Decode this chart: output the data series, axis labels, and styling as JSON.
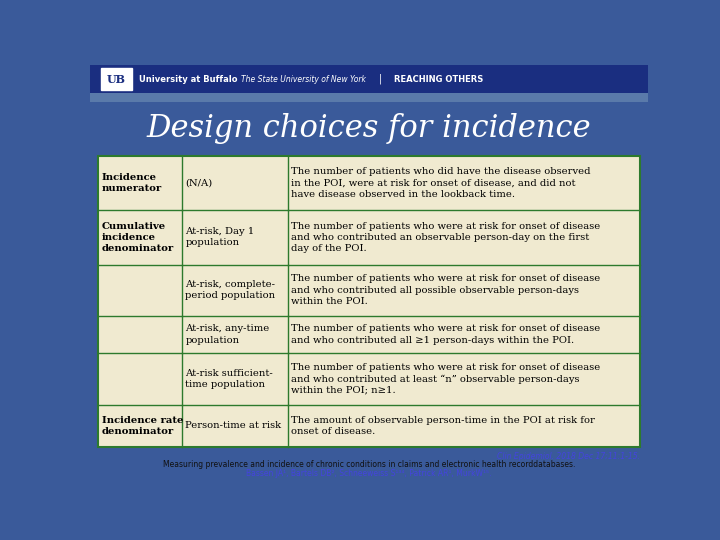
{
  "title": "Design choices for incidence",
  "bg_color": "#3a5a9a",
  "header_bg": "#1a2e80",
  "subheader_bg": "#5a7aaa",
  "table_bg": "#f0ead0",
  "border_color": "#2d7a2d",
  "text_color": "#000000",
  "title_color": "#ffffff",
  "footer_text1": "Clin Epidemiol. 2018 Dec 17;11:1-15.",
  "footer_text2": "Measuring prevalence and incidence of chronic conditions in claims and electronic health recorddatabases.",
  "footer_text3": "Bassen JA¹, Bartels DB², Schneeweiss S¹³⁴, Patrick AR¹, MurkW¹⁵.",
  "footer_color1": "#4444dd",
  "footer_color2": "#111111",
  "rows": [
    {
      "col1": "Incidence\nnumerator",
      "col2": "(N/A)",
      "col3": "The number of patients who did have the disease observed\nin the POI, were at risk for onset of disease, and did not\nhave disease observed in the lookback time.",
      "col1_bold": true
    },
    {
      "col1": "Cumulative\nincidence\ndenominator",
      "col2": "At-risk, Day 1\npopulation",
      "col3": "The number of patients who were at risk for onset of disease\nand who contributed an observable person-day on the first\nday of the POI.",
      "col1_bold": true
    },
    {
      "col1": "",
      "col2": "At-risk, complete-\nperiod population",
      "col3": "The number of patients who were at risk for onset of disease\nand who contributed all possible observable person-days\nwithin the POI.",
      "col1_bold": false
    },
    {
      "col1": "",
      "col2": "At-risk, any-time\npopulation",
      "col3": "The number of patients who were at risk for onset of disease\nand who contributed all ≥1 person-days within the POI.",
      "col1_bold": false
    },
    {
      "col1": "",
      "col2": "At-risk sufficient-\ntime population",
      "col3": "The number of patients who were at risk for onset of disease\nand who contributed at least “n” observable person-days\nwithin the POI; n≥1.",
      "col1_bold": false
    },
    {
      "col1": "Incidence rate\ndenominator",
      "col2": "Person-time at risk",
      "col3": "The amount of observable person-time in the POI at risk for\nonset of disease.",
      "col1_bold": true
    }
  ]
}
